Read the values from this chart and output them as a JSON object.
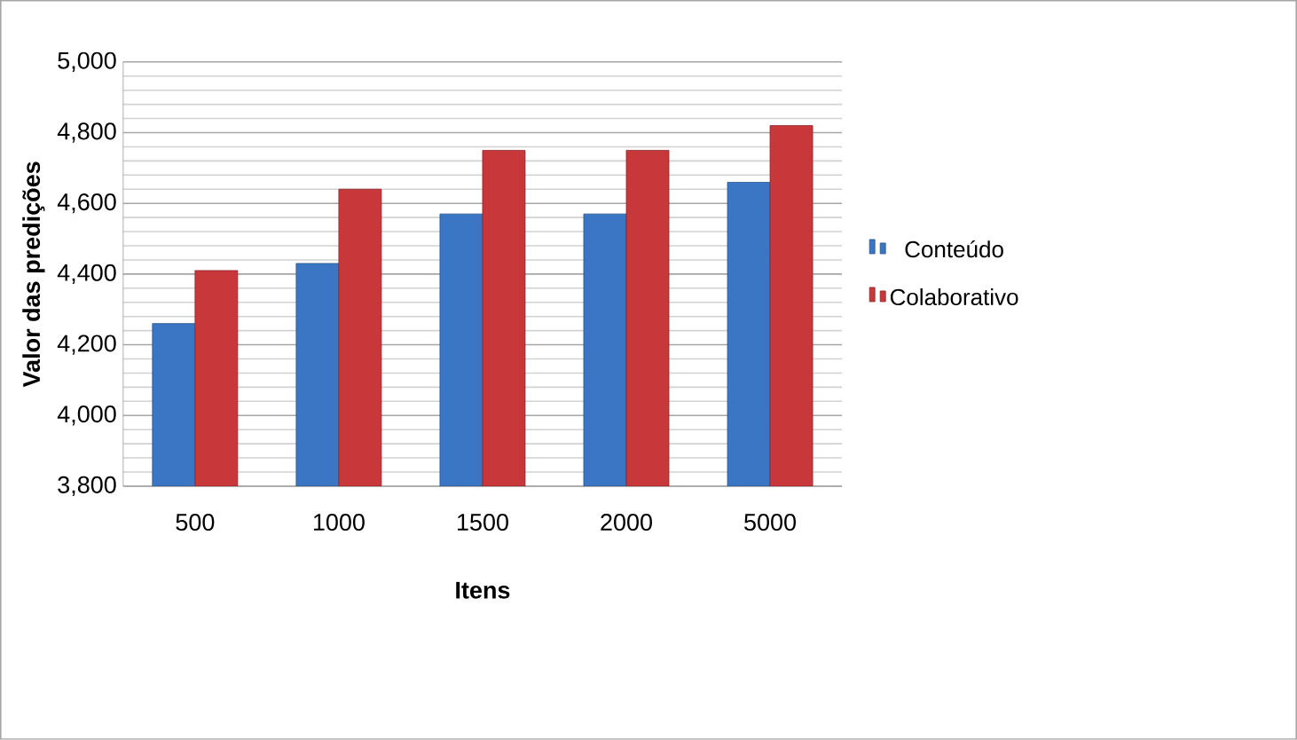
{
  "chart_data": {
    "type": "bar",
    "xlabel": "Itens",
    "ylabel": "Valor das predições",
    "categories": [
      "500",
      "1000",
      "1500",
      "2000",
      "5000"
    ],
    "series": [
      {
        "name": "Conteúdo",
        "color": "#3a76c4",
        "values": [
          4260,
          4430,
          4570,
          4570,
          4660
        ]
      },
      {
        "name": "Colaborativo",
        "color": "#c8373a",
        "values": [
          4410,
          4640,
          4750,
          4750,
          4820
        ]
      }
    ],
    "ylim": [
      3800,
      5000
    ],
    "yticks": [
      {
        "value": 3800,
        "label": "3,800"
      },
      {
        "value": 4000,
        "label": "4,000"
      },
      {
        "value": 4200,
        "label": "4,200"
      },
      {
        "value": 4400,
        "label": "4,400"
      },
      {
        "value": 4600,
        "label": "4,600"
      },
      {
        "value": 4800,
        "label": "4,800"
      },
      {
        "value": 5000,
        "label": "5,000"
      }
    ],
    "grid": "y",
    "legend": "right"
  }
}
